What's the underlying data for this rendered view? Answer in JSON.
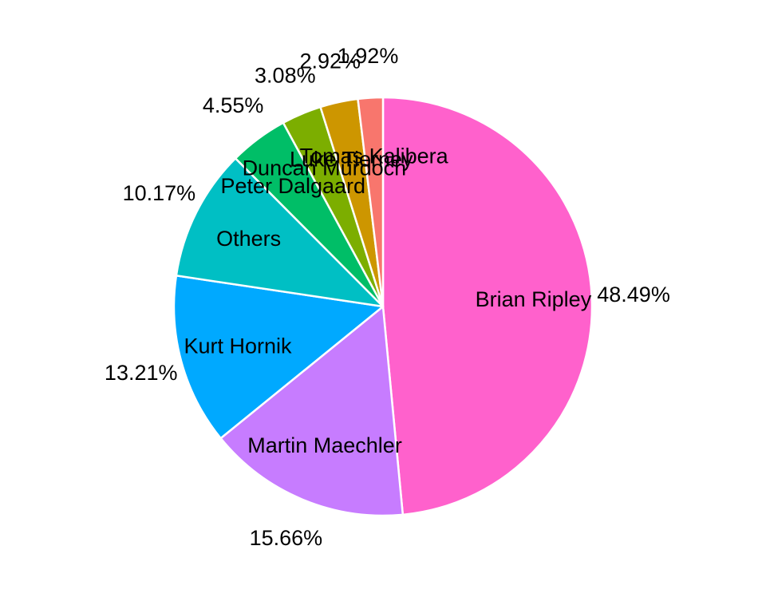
{
  "chart_data": {
    "type": "pie",
    "title": "",
    "legend": "none",
    "start": "12 o'clock",
    "direction": "clockwise",
    "slices": [
      {
        "name": "Brian Ripley",
        "value": 48.49,
        "label": "48.49%",
        "color": "#FF61CC"
      },
      {
        "name": "Martin Maechler",
        "value": 15.66,
        "label": "15.66%",
        "color": "#C77CFF"
      },
      {
        "name": "Kurt Hornik",
        "value": 13.21,
        "label": "13.21%",
        "color": "#00A9FF"
      },
      {
        "name": "Others",
        "value": 10.17,
        "label": "10.17%",
        "color": "#00BFC4"
      },
      {
        "name": "Peter Dalgaard",
        "value": 4.55,
        "label": "4.55%",
        "color": "#00BE67"
      },
      {
        "name": "Duncan Murdoch",
        "value": 3.08,
        "label": "3.08%",
        "color": "#7CAE00"
      },
      {
        "name": "Luke Tierney",
        "value": 2.92,
        "label": "2.92%",
        "color": "#CD9600"
      },
      {
        "name": "Tomas Kalibera",
        "value": 1.92,
        "label": "1.92%",
        "color": "#F8766D"
      }
    ]
  }
}
